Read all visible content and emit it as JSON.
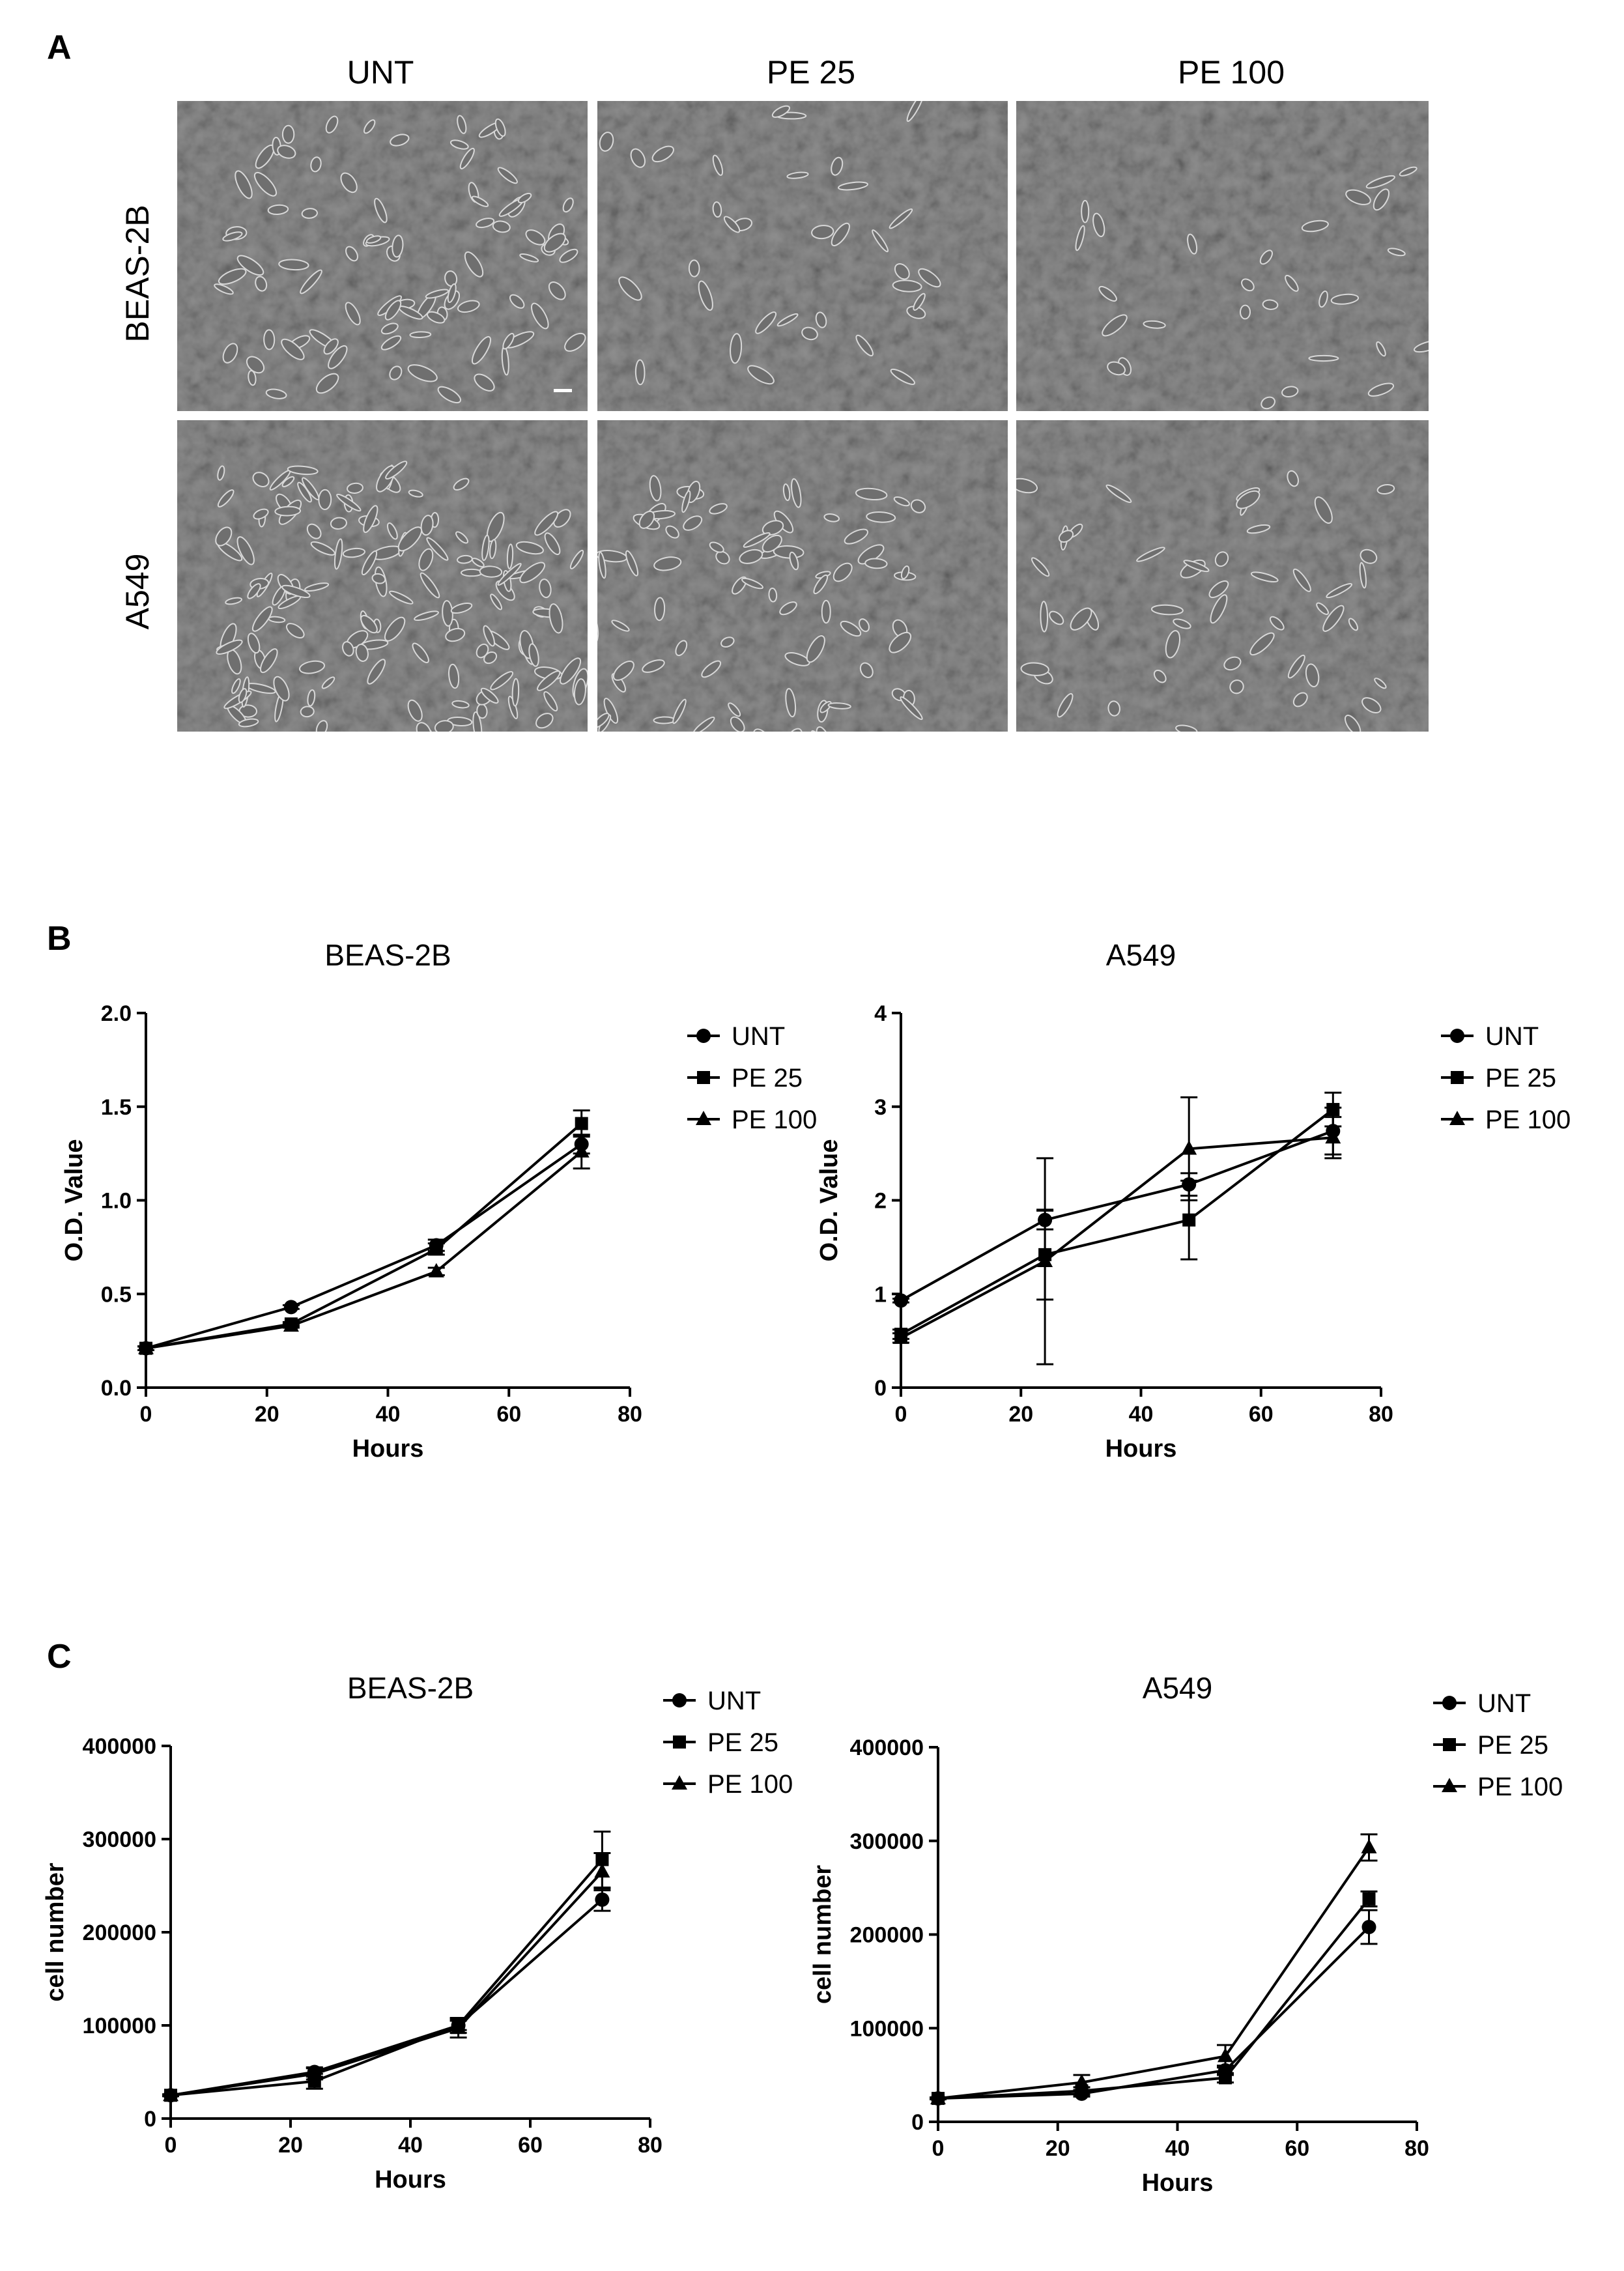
{
  "panel_a": {
    "letter": "A",
    "columns": [
      "UNT",
      "PE 25",
      "PE 100"
    ],
    "rows": [
      "BEAS-2B",
      "A549"
    ]
  },
  "panel_b": {
    "letter": "B"
  },
  "panel_c": {
    "letter": "C"
  },
  "chart_data": [
    {
      "type": "line",
      "panel": "B",
      "title": "BEAS-2B",
      "xlabel": "Hours",
      "ylabel": "O.D. Value",
      "xlim": [
        0,
        80
      ],
      "ylim": [
        0,
        2.0
      ],
      "xticks": [
        0,
        20,
        40,
        60,
        80
      ],
      "yticks": [
        0.0,
        0.5,
        1.0,
        1.5,
        2.0
      ],
      "ytick_labels": [
        "0.0",
        "0.5",
        "1.0",
        "1.5",
        "2.0"
      ],
      "legend_position": "right",
      "x": [
        0,
        24,
        48,
        72
      ],
      "series": [
        {
          "name": "UNT",
          "marker": "circle",
          "values": [
            0.21,
            0.43,
            0.76,
            1.3
          ],
          "errors": [
            0.01,
            0.01,
            0.03,
            0.05
          ]
        },
        {
          "name": "PE 25",
          "marker": "square",
          "values": [
            0.21,
            0.34,
            0.74,
            1.41
          ],
          "errors": [
            0.01,
            0.01,
            0.03,
            0.07
          ]
        },
        {
          "name": "PE 100",
          "marker": "triangle",
          "values": [
            0.21,
            0.33,
            0.62,
            1.26
          ],
          "errors": [
            0.01,
            0.01,
            0.02,
            0.09
          ]
        }
      ]
    },
    {
      "type": "line",
      "panel": "B",
      "title": "A549",
      "xlabel": "Hours",
      "ylabel": "O.D. Value",
      "xlim": [
        0,
        80
      ],
      "ylim": [
        0,
        4
      ],
      "xticks": [
        0,
        20,
        40,
        60,
        80
      ],
      "yticks": [
        0,
        1,
        2,
        3,
        4
      ],
      "ytick_labels": [
        "0",
        "1",
        "2",
        "3",
        "4"
      ],
      "legend_position": "right",
      "x": [
        0,
        24,
        48,
        72
      ],
      "series": [
        {
          "name": "UNT",
          "marker": "circle",
          "values": [
            0.93,
            1.79,
            2.17,
            2.74
          ],
          "errors": [
            0.02,
            0.1,
            0.12,
            0.25
          ]
        },
        {
          "name": "PE 25",
          "marker": "square",
          "values": [
            0.57,
            1.42,
            1.79,
            2.97
          ],
          "errors": [
            0.05,
            0.48,
            0.42,
            0.18
          ]
        },
        {
          "name": "PE 100",
          "marker": "triangle",
          "values": [
            0.53,
            1.35,
            2.55,
            2.67
          ],
          "errors": [
            0.05,
            1.1,
            0.55,
            0.22
          ]
        }
      ]
    },
    {
      "type": "line",
      "panel": "C",
      "title": "BEAS-2B",
      "xlabel": "Hours",
      "ylabel": "cell number",
      "xlim": [
        0,
        80
      ],
      "ylim": [
        0,
        400000
      ],
      "xticks": [
        0,
        20,
        40,
        60,
        80
      ],
      "yticks": [
        0,
        100000,
        200000,
        300000,
        400000
      ],
      "ytick_labels": [
        "0",
        "100000",
        "200000",
        "300000",
        "400000"
      ],
      "legend_position": "top-right",
      "x": [
        0,
        24,
        48,
        72
      ],
      "series": [
        {
          "name": "UNT",
          "marker": "circle",
          "values": [
            25000,
            50000,
            100000,
            235000
          ],
          "errors": [
            1000,
            5000,
            5000,
            12000
          ]
        },
        {
          "name": "PE 25",
          "marker": "square",
          "values": [
            25000,
            40000,
            100000,
            278000
          ],
          "errors": [
            1000,
            8000,
            8000,
            30000
          ]
        },
        {
          "name": "PE 100",
          "marker": "triangle",
          "values": [
            25000,
            48000,
            97000,
            265000
          ],
          "errors": [
            1000,
            6000,
            10000,
            20000
          ]
        }
      ]
    },
    {
      "type": "line",
      "panel": "C",
      "title": "A549",
      "xlabel": "Hours",
      "ylabel": "cell number",
      "xlim": [
        0,
        80
      ],
      "ylim": [
        0,
        400000
      ],
      "xticks": [
        0,
        20,
        40,
        60,
        80
      ],
      "yticks": [
        0,
        100000,
        200000,
        300000,
        400000
      ],
      "ytick_labels": [
        "0",
        "100000",
        "200000",
        "300000",
        "400000"
      ],
      "legend_position": "top-right",
      "x": [
        0,
        24,
        48,
        72
      ],
      "series": [
        {
          "name": "UNT",
          "marker": "circle",
          "values": [
            25000,
            30000,
            55000,
            208000
          ],
          "errors": [
            1000,
            3000,
            5000,
            18000
          ]
        },
        {
          "name": "PE 25",
          "marker": "square",
          "values": [
            25000,
            33000,
            47000,
            238000
          ],
          "errors": [
            1000,
            4000,
            5000,
            8000
          ]
        },
        {
          "name": "PE 100",
          "marker": "triangle",
          "values": [
            25000,
            42000,
            70000,
            293000
          ],
          "errors": [
            1000,
            8000,
            12000,
            14000
          ]
        }
      ]
    }
  ]
}
